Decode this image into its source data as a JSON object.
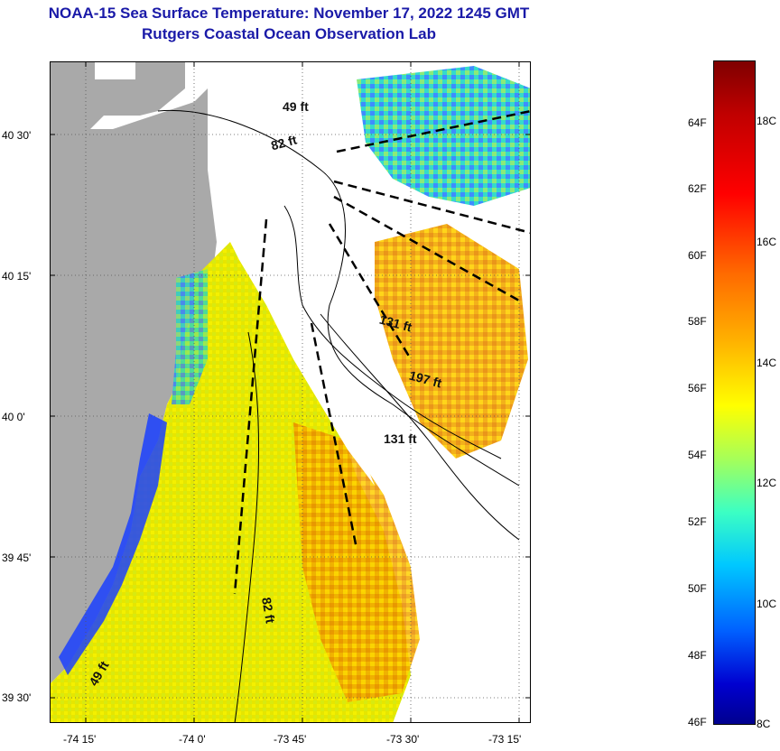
{
  "title": {
    "line1": "NOAA-15 Sea Surface Temperature:  November 17, 2022 1245 GMT",
    "line2": "Rutgers Coastal Ocean Observation Lab"
  },
  "axes": {
    "lat_labels": [
      "40 30'",
      "40 15'",
      "40 0'",
      "39 45'",
      "39 30'"
    ],
    "lon_labels": [
      "-74 15'",
      "-74 0'",
      "-73 45'",
      "-73 30'",
      "-73 15'"
    ]
  },
  "contour_labels": [
    "49 ft",
    "82 ft",
    "131 ft",
    "197 ft",
    "131 ft",
    "82 ft",
    "49 ft"
  ],
  "colorbar": {
    "fahrenheit": [
      "64F",
      "62F",
      "60F",
      "58F",
      "56F",
      "54F",
      "52F",
      "50F",
      "48F",
      "46F"
    ],
    "celsius": [
      "18C",
      "16C",
      "14C",
      "12C",
      "10C",
      "8C"
    ]
  },
  "colors": {
    "land": "#a9a9a9",
    "title": "#1a1aa8",
    "warm": "#ffa500",
    "cool": "#00aaff"
  }
}
